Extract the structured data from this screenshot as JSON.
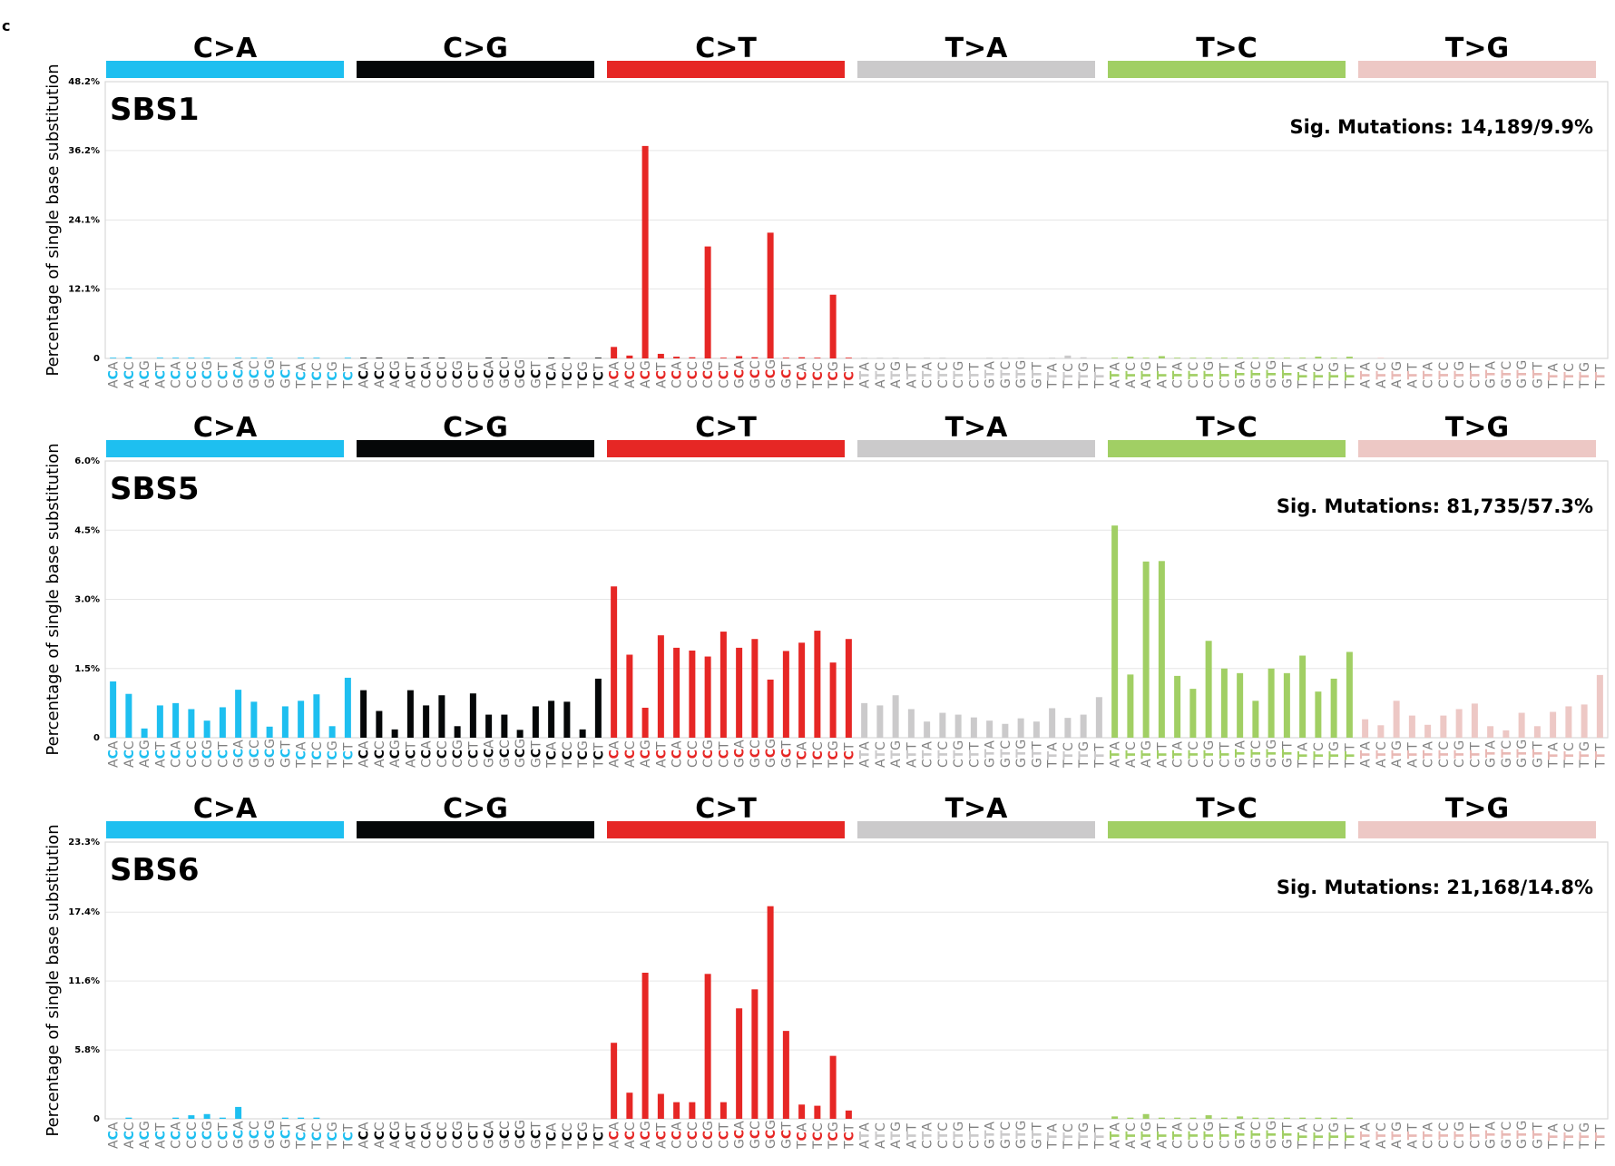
{
  "figure_label": "c",
  "colors": {
    "C>A": "#1ebff0",
    "C>G": "#050708",
    "C>T": "#e62725",
    "T>A": "#cbcacb",
    "T>C": "#a1cf64",
    "T>G": "#edc8c5"
  },
  "chart_data": [
    {
      "type": "bar",
      "title": "SBS1",
      "annotation": "Sig. Mutations: 14,189/9.9%",
      "ylabel": "Percentage of single base substitution",
      "ylim": [
        0,
        48.2
      ],
      "yticks": [
        0,
        12.1,
        24.1,
        36.2,
        48.2
      ],
      "ytick_labels": [
        "0",
        "12.1%",
        "24.1%",
        "36.2%",
        "48.2%"
      ],
      "grid": true,
      "groups": [
        "C>A",
        "C>G",
        "C>T",
        "T>A",
        "T>C",
        "T>G"
      ],
      "categories": {
        "C>A": [
          "ACA",
          "ACC",
          "ACG",
          "ACT",
          "CCA",
          "CCC",
          "CCG",
          "CCT",
          "GCA",
          "GCC",
          "GCG",
          "GCT",
          "TCA",
          "TCC",
          "TCG",
          "TCT"
        ],
        "C>G": [
          "ACA",
          "ACC",
          "ACG",
          "ACT",
          "CCA",
          "CCC",
          "CCG",
          "CCT",
          "GCA",
          "GCC",
          "GCG",
          "GCT",
          "TCA",
          "TCC",
          "TCG",
          "TCT"
        ],
        "C>T": [
          "ACA",
          "ACC",
          "ACG",
          "ACT",
          "CCA",
          "CCC",
          "CCG",
          "CCT",
          "GCA",
          "GCC",
          "GCG",
          "GCT",
          "TCA",
          "TCC",
          "TCG",
          "TCT"
        ],
        "T>A": [
          "ATA",
          "ATC",
          "ATG",
          "ATT",
          "CTA",
          "CTC",
          "CTG",
          "CTT",
          "GTA",
          "GTC",
          "GTG",
          "GTT",
          "TTA",
          "TTC",
          "TTG",
          "TTT"
        ],
        "T>C": [
          "ATA",
          "ATC",
          "ATG",
          "ATT",
          "CTA",
          "CTC",
          "CTG",
          "CTT",
          "GTA",
          "GTC",
          "GTG",
          "GTT",
          "TTA",
          "TTC",
          "TTG",
          "TTT"
        ],
        "T>G": [
          "ATA",
          "ATC",
          "ATG",
          "ATT",
          "CTA",
          "CTC",
          "CTG",
          "CTT",
          "GTA",
          "GTC",
          "GTG",
          "GTT",
          "TTA",
          "TTC",
          "TTG",
          "TTT"
        ]
      },
      "values": {
        "C>A": [
          0.1,
          0.2,
          0.0,
          0.1,
          0.1,
          0.1,
          0.1,
          0.0,
          0.1,
          0.1,
          0.1,
          0.0,
          0.1,
          0.1,
          0.0,
          0.1
        ],
        "C>G": [
          0.1,
          0.1,
          0.0,
          0.1,
          0.1,
          0.1,
          0.0,
          0.0,
          0.1,
          0.1,
          0.0,
          0.0,
          0.1,
          0.1,
          0.0,
          0.1
        ],
        "C>T": [
          2.0,
          0.5,
          37.0,
          0.8,
          0.3,
          0.2,
          19.5,
          0.1,
          0.4,
          0.2,
          21.9,
          0.1,
          0.2,
          0.1,
          11.1,
          0.1
        ],
        "T>A": [
          0.1,
          0.1,
          0.1,
          0.0,
          0.1,
          0.1,
          0.0,
          0.0,
          0.1,
          0.1,
          0.1,
          0.0,
          0.1,
          0.5,
          0.2,
          0.0
        ],
        "T>C": [
          0.1,
          0.3,
          0.1,
          0.4,
          0.1,
          0.1,
          0.1,
          0.1,
          0.1,
          0.1,
          0.1,
          0.1,
          0.1,
          0.3,
          0.1,
          0.3
        ],
        "T>G": [
          0.0,
          0.1,
          0.0,
          0.0,
          0.0,
          0.0,
          0.0,
          0.0,
          0.0,
          0.0,
          0.0,
          0.0,
          0.0,
          0.0,
          0.0,
          0.0
        ]
      }
    },
    {
      "type": "bar",
      "title": "SBS5",
      "annotation": "Sig. Mutations: 81,735/57.3%",
      "ylabel": "Percentage of single base substitution",
      "ylim": [
        0,
        6.0
      ],
      "yticks": [
        0,
        1.5,
        3.0,
        4.5,
        6.0
      ],
      "ytick_labels": [
        "0",
        "1.5%",
        "3.0%",
        "4.5%",
        "6.0%"
      ],
      "grid": true,
      "groups": [
        "C>A",
        "C>G",
        "C>T",
        "T>A",
        "T>C",
        "T>G"
      ],
      "categories": {
        "C>A": [
          "ACA",
          "ACC",
          "ACG",
          "ACT",
          "CCA",
          "CCC",
          "CCG",
          "CCT",
          "GCA",
          "GCC",
          "GCG",
          "GCT",
          "TCA",
          "TCC",
          "TCG",
          "TCT"
        ],
        "C>G": [
          "ACA",
          "ACC",
          "ACG",
          "ACT",
          "CCA",
          "CCC",
          "CCG",
          "CCT",
          "GCA",
          "GCC",
          "GCG",
          "GCT",
          "TCA",
          "TCC",
          "TCG",
          "TCT"
        ],
        "C>T": [
          "ACA",
          "ACC",
          "ACG",
          "ACT",
          "CCA",
          "CCC",
          "CCG",
          "CCT",
          "GCA",
          "GCC",
          "GCG",
          "GCT",
          "TCA",
          "TCC",
          "TCG",
          "TCT"
        ],
        "T>A": [
          "ATA",
          "ATC",
          "ATG",
          "ATT",
          "CTA",
          "CTC",
          "CTG",
          "CTT",
          "GTA",
          "GTC",
          "GTG",
          "GTT",
          "TTA",
          "TTC",
          "TTG",
          "TTT"
        ],
        "T>C": [
          "ATA",
          "ATC",
          "ATG",
          "ATT",
          "CTA",
          "CTC",
          "CTG",
          "CTT",
          "GTA",
          "GTC",
          "GTG",
          "GTT",
          "TTA",
          "TTC",
          "TTG",
          "TTT"
        ],
        "T>G": [
          "ATA",
          "ATC",
          "ATG",
          "ATT",
          "CTA",
          "CTC",
          "CTG",
          "CTT",
          "GTA",
          "GTC",
          "GTG",
          "GTT",
          "TTA",
          "TTC",
          "TTG",
          "TTT"
        ]
      },
      "values": {
        "C>A": [
          1.22,
          0.95,
          0.2,
          0.7,
          0.75,
          0.62,
          0.37,
          0.66,
          1.04,
          0.78,
          0.24,
          0.68,
          0.8,
          0.94,
          0.25,
          1.3
        ],
        "C>G": [
          1.03,
          0.58,
          0.18,
          1.03,
          0.7,
          0.92,
          0.25,
          0.96,
          0.5,
          0.5,
          0.17,
          0.68,
          0.8,
          0.78,
          0.18,
          1.28
        ],
        "C>T": [
          3.28,
          1.8,
          0.65,
          2.22,
          1.95,
          1.89,
          1.76,
          2.3,
          1.95,
          2.14,
          1.26,
          1.88,
          2.06,
          2.32,
          1.63,
          2.14
        ],
        "T>A": [
          0.75,
          0.7,
          0.92,
          0.62,
          0.35,
          0.54,
          0.5,
          0.44,
          0.37,
          0.3,
          0.42,
          0.35,
          0.64,
          0.43,
          0.5,
          0.88
        ],
        "T>C": [
          4.6,
          1.37,
          3.82,
          3.83,
          1.34,
          1.06,
          2.1,
          1.5,
          1.4,
          0.8,
          1.5,
          1.4,
          1.78,
          1.0,
          1.28,
          1.86
        ],
        "T>G": [
          0.4,
          0.27,
          0.8,
          0.48,
          0.28,
          0.48,
          0.62,
          0.74,
          0.25,
          0.16,
          0.54,
          0.25,
          0.56,
          0.68,
          0.72,
          1.36
        ]
      }
    },
    {
      "type": "bar",
      "title": "SBS6",
      "annotation": "Sig. Mutations: 21,168/14.8%",
      "ylabel": "Percentage of single base substitution",
      "ylim": [
        0,
        23.3
      ],
      "yticks": [
        0,
        5.8,
        11.6,
        17.4,
        23.3
      ],
      "ytick_labels": [
        "0",
        "5.8%",
        "11.6%",
        "17.4%",
        "23.3%"
      ],
      "grid": true,
      "groups": [
        "C>A",
        "C>G",
        "C>T",
        "T>A",
        "T>C",
        "T>G"
      ],
      "categories": {
        "C>A": [
          "ACA",
          "ACC",
          "ACG",
          "ACT",
          "CCA",
          "CCC",
          "CCG",
          "CCT",
          "GCA",
          "GCC",
          "GCG",
          "GCT",
          "TCA",
          "TCC",
          "TCG",
          "TCT"
        ],
        "C>G": [
          "ACA",
          "ACC",
          "ACG",
          "ACT",
          "CCA",
          "CCC",
          "CCG",
          "CCT",
          "GCA",
          "GCC",
          "GCG",
          "GCT",
          "TCA",
          "TCC",
          "TCG",
          "TCT"
        ],
        "C>T": [
          "ACA",
          "ACC",
          "ACG",
          "ACT",
          "CCA",
          "CCC",
          "CCG",
          "CCT",
          "GCA",
          "GCC",
          "GCG",
          "GCT",
          "TCA",
          "TCC",
          "TCG",
          "TCT"
        ],
        "T>A": [
          "ATA",
          "ATC",
          "ATG",
          "ATT",
          "CTA",
          "CTC",
          "CTG",
          "CTT",
          "GTA",
          "GTC",
          "GTG",
          "GTT",
          "TTA",
          "TTC",
          "TTG",
          "TTT"
        ],
        "T>C": [
          "ATA",
          "ATC",
          "ATG",
          "ATT",
          "CTA",
          "CTC",
          "CTG",
          "CTT",
          "GTA",
          "GTC",
          "GTG",
          "GTT",
          "TTA",
          "TTC",
          "TTG",
          "TTT"
        ],
        "T>G": [
          "ATA",
          "ATC",
          "ATG",
          "ATT",
          "CTA",
          "CTC",
          "CTG",
          "CTT",
          "GTA",
          "GTC",
          "GTG",
          "GTT",
          "TTA",
          "TTC",
          "TTG",
          "TTT"
        ]
      },
      "values": {
        "C>A": [
          0.0,
          0.1,
          0.0,
          0.0,
          0.1,
          0.3,
          0.4,
          0.1,
          1.0,
          0.0,
          0.0,
          0.1,
          0.1,
          0.1,
          0.0,
          0.0
        ],
        "C>G": [
          0.0,
          0.0,
          0.0,
          0.0,
          0.0,
          0.0,
          0.0,
          0.0,
          0.0,
          0.0,
          0.0,
          0.0,
          0.0,
          0.0,
          0.0,
          0.0
        ],
        "C>T": [
          6.4,
          2.2,
          12.3,
          2.1,
          1.4,
          1.4,
          12.2,
          1.4,
          9.3,
          10.9,
          17.9,
          7.4,
          1.2,
          1.1,
          5.3,
          0.7
        ],
        "T>A": [
          0.0,
          0.0,
          0.0,
          0.0,
          0.0,
          0.0,
          0.0,
          0.0,
          0.0,
          0.0,
          0.0,
          0.0,
          0.0,
          0.0,
          0.0,
          0.0
        ],
        "T>C": [
          0.2,
          0.1,
          0.4,
          0.1,
          0.1,
          0.1,
          0.3,
          0.1,
          0.2,
          0.1,
          0.1,
          0.1,
          0.1,
          0.1,
          0.1,
          0.1
        ],
        "T>G": [
          0.0,
          0.0,
          0.0,
          0.0,
          0.0,
          0.0,
          0.0,
          0.0,
          0.0,
          0.0,
          0.0,
          0.0,
          0.0,
          0.0,
          0.0,
          0.0
        ]
      }
    }
  ]
}
